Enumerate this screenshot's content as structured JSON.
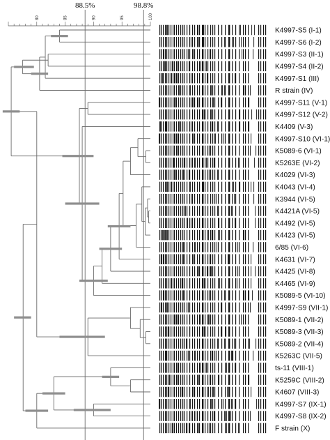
{
  "scale": {
    "min": 75,
    "max": 100,
    "ticks": [
      80,
      85,
      90,
      95,
      100
    ],
    "tick_labels": [
      "80",
      "85",
      "90",
      "95",
      "100"
    ]
  },
  "reference_lines": [
    {
      "value": 88.5,
      "label": "88.5%"
    },
    {
      "value": 98.8,
      "label": "98.8%"
    }
  ],
  "strains": [
    "K4997-S5 (I-1)",
    "K4997-S6 (I-2)",
    "K4997-S3 (II-1)",
    "K4997-S4 (II-2)",
    "K4997-S1 (III)",
    "R strain (IV)",
    "K4997-S11 (V-1)",
    "K4997-S12 (V-2)",
    "K4409 (V-3)",
    "K4997-S10 (VI-1)",
    "K5089-6 (VI-1)",
    "K5263E (VI-2)",
    "K4029 (VI-3)",
    "K4043 (VI-4)",
    "K3944 (VI-5)",
    "K4421A (VI-5)",
    "K4492 (VI-5)",
    "K4423 (VI-5)",
    "6/85 (VI-6)",
    "K4631 (VI-7)",
    "K4425 (VI-8)",
    "K4465 (VI-9)",
    "K5089-5 (VI-10)",
    "K4997-S9 (VII-1)",
    "K5089-1 (VII-2)",
    "K5089-3 (VII-3)",
    "K5089-2 (VII-4)",
    "K5263C (VII-5)",
    "ts-11 (VIII-1)",
    "K5259C (VIII-2)",
    "K4607 (VIII-3)",
    "K4997-S7 (IX-1)",
    "K4997-S8 (IX-2)",
    "F strain (X)"
  ],
  "tree": {
    "a": {
      "sim": 77.6,
      "children": [
        "b",
        "G"
      ]
    },
    "b": {
      "sim": 80.0,
      "children": [
        "c",
        "S"
      ]
    },
    "c": {
      "sim": 75.5,
      "children": [
        "d",
        "t"
      ]
    },
    "d": {
      "sim": 77.5,
      "children": [
        "e",
        "h"
      ]
    },
    "e": {
      "sim": 80.5,
      "children": [
        "f",
        5
      ]
    },
    "f": {
      "sim": 81.5,
      "children": [
        "g",
        4
      ]
    },
    "g": {
      "sim": 84.0,
      "children": [
        0,
        1
      ]
    },
    "h": {
      "sim": 82.0,
      "children": [
        2,
        3
      ]
    },
    "t": {
      "sim": 87.5,
      "children": [
        "v",
        "W"
      ]
    },
    "v": {
      "sim": 89.0,
      "children": [
        6,
        7
      ]
    },
    "W": {
      "sim": 88.0,
      "children": [
        8,
        "Y"
      ]
    },
    "Y": {
      "sim": 90.0,
      "children": [
        "Z1",
        22
      ]
    },
    "Z1": {
      "sim": 91.5,
      "children": [
        "Z2",
        21
      ]
    },
    "Z2": {
      "sim": 93.0,
      "children": [
        "Z3",
        20
      ]
    },
    "Z3": {
      "sim": 94.5,
      "children": [
        "Z4",
        19
      ]
    },
    "Z4": {
      "sim": 95.2,
      "children": [
        "Z5",
        "Z6"
      ]
    },
    "Z5": {
      "sim": 96.5,
      "children": [
        "Z5a",
        12
      ]
    },
    "Z5a": {
      "sim": 97.8,
      "children": [
        9,
        "Z5b"
      ]
    },
    "Z5b": {
      "sim": 99.2,
      "children": [
        10,
        11
      ]
    },
    "Z6": {
      "sim": 97.5,
      "children": [
        "Z6a",
        18
      ]
    },
    "Z6a": {
      "sim": 98.5,
      "children": [
        13,
        "Z6b"
      ]
    },
    "Z6b": {
      "sim": 99.1,
      "children": [
        "Z6c",
        17
      ]
    },
    "Z6c": {
      "sim": 99.5,
      "children": [
        14,
        "Z6d"
      ]
    },
    "Z6d": {
      "sim": 99.7,
      "children": [
        15,
        16
      ]
    },
    "S": {
      "sim": 89.0,
      "children": [
        "S1",
        27
      ]
    },
    "S1": {
      "sim": 96.5,
      "children": [
        23,
        "S2"
      ]
    },
    "S2": {
      "sim": 98.2,
      "children": [
        24,
        "S3"
      ]
    },
    "S3": {
      "sim": 99.2,
      "children": [
        25,
        26
      ]
    },
    "G": {
      "sim": 80.0,
      "children": [
        "Ga",
        33
      ]
    },
    "Ga": {
      "sim": 83.0,
      "children": [
        "Gb",
        "Gc"
      ]
    },
    "Gb": {
      "sim": 93.0,
      "children": [
        28,
        "Gb2"
      ]
    },
    "Gb2": {
      "sim": 96.5,
      "children": [
        29,
        30
      ]
    },
    "Gc": {
      "sim": 90.0,
      "children": [
        31,
        32
      ]
    }
  },
  "tree_root": "a",
  "cophenetic_bars": [
    {
      "node": "a",
      "from": 76.0,
      "to": 79.0
    },
    {
      "node": "c",
      "from": 74.0,
      "to": 77.0
    },
    {
      "node": "S",
      "from": 84.0,
      "to": 92.0
    },
    {
      "node": "G",
      "from": 78.0,
      "to": 82.0
    },
    {
      "node": "d",
      "from": 76.0,
      "to": 79.5
    },
    {
      "node": "e",
      "from": 79.0,
      "to": 82.0
    },
    {
      "node": "g",
      "from": 82.5,
      "to": 85.5
    },
    {
      "node": "t",
      "from": 84.5,
      "to": 90.0
    },
    {
      "node": "W",
      "from": 85.0,
      "to": 91.0
    },
    {
      "node": "Y",
      "from": 87.5,
      "to": 92.5
    },
    {
      "node": "Z2",
      "from": 91.0,
      "to": 95.0
    },
    {
      "node": "Z3",
      "from": 92.5,
      "to": 96.5
    },
    {
      "node": "Gc",
      "from": 86.5,
      "to": 93.0
    },
    {
      "node": "Ga",
      "from": 81.0,
      "to": 85.0
    },
    {
      "node": "Gb",
      "from": 91.5,
      "to": 94.5
    }
  ],
  "gel": {
    "common_bands": [
      229,
      231,
      234,
      237,
      239,
      242,
      245,
      248,
      250,
      253,
      256,
      259,
      262,
      264,
      268,
      272,
      276,
      279,
      283,
      286,
      290,
      294,
      298,
      302,
      305,
      308,
      313,
      318,
      323,
      328,
      333,
      338,
      343,
      349,
      352,
      356,
      371,
      374,
      378,
      381
    ],
    "variable_bands": [
      [
        240,
        276,
        284,
        292,
        313,
        345,
        361,
        365
      ],
      [
        239,
        274,
        285,
        292,
        322,
        328,
        335,
        346,
        364
      ],
      [
        235,
        245,
        270,
        277,
        298,
        301,
        318,
        347,
        363
      ],
      [
        236,
        247,
        254,
        271,
        283,
        288,
        296,
        313
      ],
      [
        233,
        246,
        251,
        254,
        274,
        290,
        297,
        337
      ],
      [
        257,
        273,
        279,
        303,
        319,
        322,
        343,
        350,
        359
      ],
      [
        228,
        245,
        252,
        274,
        278,
        284,
        306,
        317,
        357
      ],
      [
        242,
        253,
        262,
        293,
        303,
        313,
        344,
        361,
        368
      ],
      [
        230,
        238,
        257,
        274,
        304,
        312,
        328,
        344,
        357
      ],
      [
        228,
        251,
        255,
        277,
        302,
        309,
        321,
        360
      ],
      [
        239,
        248,
        254,
        262,
        264,
        300,
        333,
        359,
        367
      ],
      [
        249,
        265,
        274,
        280,
        296,
        307,
        342,
        365
      ],
      [
        248,
        252,
        263,
        271,
        290,
        300,
        312,
        352
      ],
      [
        240,
        246,
        273,
        292,
        305,
        335,
        344,
        360,
        364
      ],
      [
        231,
        275,
        291,
        310,
        336,
        343,
        356,
        364
      ],
      [
        239,
        262,
        266,
        294,
        312,
        313,
        332,
        366
      ],
      [
        242,
        264,
        269,
        274,
        279,
        286,
        314,
        337,
        366
      ],
      [
        233,
        236,
        240,
        283,
        299,
        304,
        315,
        350,
        356
      ],
      [
        259,
        263,
        280,
        305,
        311,
        341,
        352,
        363
      ],
      [
        232,
        235,
        263,
        277,
        301,
        302,
        327,
        360
      ],
      [
        237,
        268,
        285,
        297,
        301,
        303,
        341,
        360,
        366
      ],
      [
        246,
        261,
        264,
        272,
        293,
        315,
        340,
        360
      ],
      [
        235,
        263,
        279,
        291,
        300,
        322,
        350,
        357,
        362
      ],
      [
        232,
        240,
        253,
        256,
        270,
        294,
        317,
        359
      ],
      [
        229,
        251,
        255,
        287,
        290,
        299,
        300,
        308,
        346
      ],
      [
        231,
        241,
        245,
        272,
        293,
        294,
        317,
        318,
        324
      ],
      [
        237,
        245,
        264,
        267,
        312,
        322,
        336,
        358,
        367
      ],
      [
        238,
        270,
        280,
        294,
        304,
        310,
        332,
        334,
        363
      ],
      [
        245,
        253,
        255,
        287,
        296,
        323,
        325,
        337
      ],
      [
        231,
        243,
        254,
        276,
        285,
        301,
        314,
        333,
        357
      ],
      [
        241,
        261,
        278,
        299,
        302,
        306,
        326,
        360
      ],
      [
        228,
        242,
        273,
        303,
        320,
        332,
        337,
        368
      ],
      [
        248,
        262,
        274,
        281,
        307,
        322,
        325,
        331,
        359
      ],
      [
        234,
        247,
        267,
        271,
        285,
        300,
        325,
        342
      ]
    ],
    "dark_columns": [
      290,
      293,
      296,
      311,
      315,
      328
    ],
    "band_color": "#141414",
    "background_color": "#ffffff"
  },
  "colors": {
    "tree_line": "#6a6a6a",
    "error_bar": "#8e8e8e",
    "reference_line": "#444444",
    "scale_line": "#555555",
    "text": "#111111"
  }
}
